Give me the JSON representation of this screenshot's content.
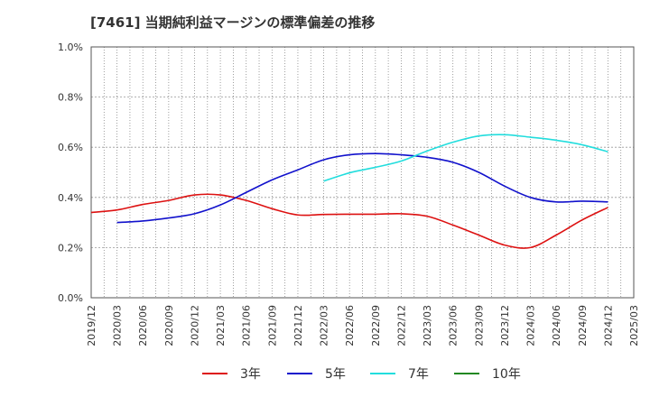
{
  "chart_data": {
    "type": "line",
    "title": "[7461]  当期純利益マージンの標準偏差の推移",
    "xlabel": "",
    "ylabel": "",
    "ylim": [
      0,
      0.01
    ],
    "yticks": [
      0,
      0.002,
      0.004,
      0.006,
      0.008,
      0.01
    ],
    "ytick_labels": [
      "0.0%",
      "0.2%",
      "0.4%",
      "0.6%",
      "0.8%",
      "1.0%"
    ],
    "xtick_labels": [
      "2019/12",
      "2020/03",
      "2020/06",
      "2020/09",
      "2020/12",
      "2021/03",
      "2021/06",
      "2021/09",
      "2021/12",
      "2022/03",
      "2022/06",
      "2022/09",
      "2022/12",
      "2023/03",
      "2023/06",
      "2023/09",
      "2023/12",
      "2024/03",
      "2024/06",
      "2024/09",
      "2024/12",
      "2025/03"
    ],
    "grid": true,
    "legend_position": "bottom",
    "series": [
      {
        "name": "3年",
        "color": "#dd1111",
        "x": [
          "2019/12",
          "2020/03",
          "2020/06",
          "2020/09",
          "2020/12",
          "2021/03",
          "2021/06",
          "2021/09",
          "2021/12",
          "2022/03",
          "2022/06",
          "2022/09",
          "2022/12",
          "2023/03",
          "2023/06",
          "2023/09",
          "2023/12",
          "2024/03",
          "2024/06",
          "2024/09",
          "2024/12"
        ],
        "values": [
          0.0034,
          0.0035,
          0.00372,
          0.00388,
          0.0041,
          0.0041,
          0.00388,
          0.00355,
          0.0033,
          0.00332,
          0.00333,
          0.00333,
          0.00335,
          0.00325,
          0.0029,
          0.0025,
          0.0021,
          0.002,
          0.0025,
          0.0031,
          0.0036
        ]
      },
      {
        "name": "5年",
        "color": "#1111cc",
        "x": [
          "2020/03",
          "2020/06",
          "2020/09",
          "2020/12",
          "2021/03",
          "2021/06",
          "2021/09",
          "2021/12",
          "2022/03",
          "2022/06",
          "2022/09",
          "2022/12",
          "2023/03",
          "2023/06",
          "2023/09",
          "2023/12",
          "2024/03",
          "2024/06",
          "2024/09",
          "2024/12"
        ],
        "values": [
          0.003,
          0.00306,
          0.00318,
          0.00335,
          0.0037,
          0.0042,
          0.0047,
          0.0051,
          0.0055,
          0.0057,
          0.00575,
          0.0057,
          0.0056,
          0.0054,
          0.005,
          0.00445,
          0.004,
          0.00382,
          0.00385,
          0.00382
        ]
      },
      {
        "name": "7年",
        "color": "#22dddd",
        "x": [
          "2022/03",
          "2022/06",
          "2022/09",
          "2022/12",
          "2023/03",
          "2023/06",
          "2023/09",
          "2023/12",
          "2024/03",
          "2024/06",
          "2024/09",
          "2024/12"
        ],
        "values": [
          0.00465,
          0.00498,
          0.0052,
          0.00545,
          0.00585,
          0.0062,
          0.00645,
          0.0065,
          0.0064,
          0.00628,
          0.0061,
          0.00582
        ]
      },
      {
        "name": "10年",
        "color": "#228822",
        "x": [],
        "values": []
      }
    ]
  }
}
